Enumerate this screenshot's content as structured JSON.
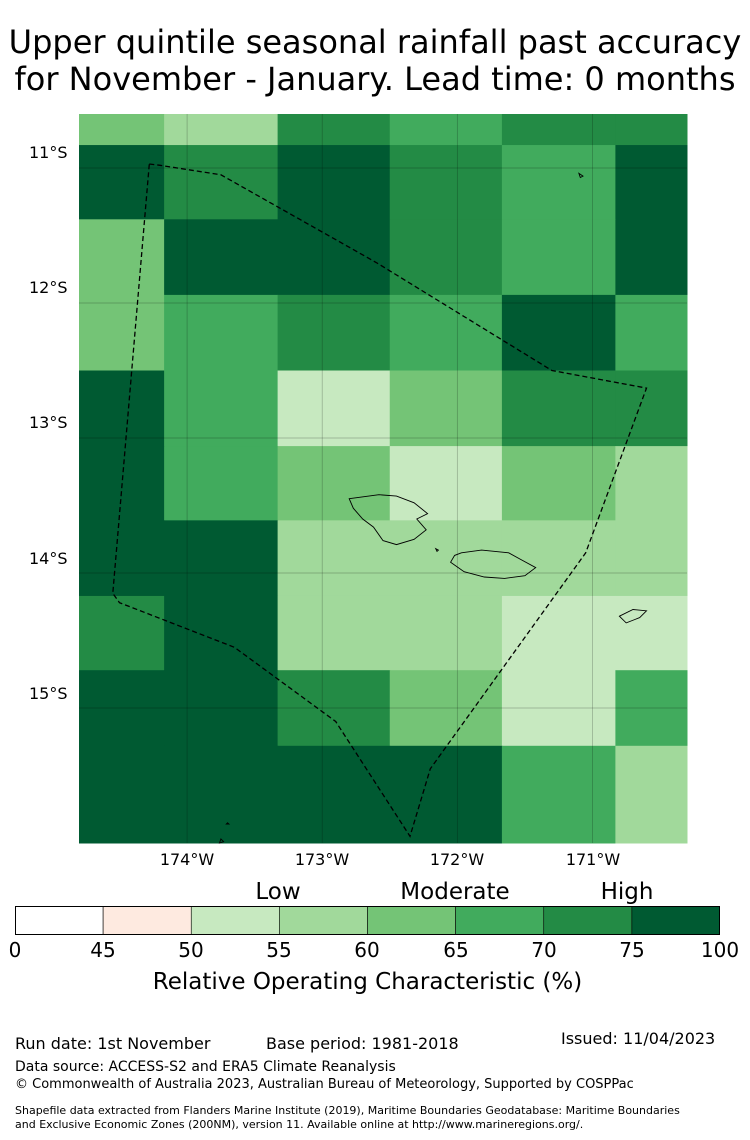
{
  "title": {
    "line1": "Upper quintile seasonal rainfall past accuracy",
    "line2": "for November - January. Lead time: 0 months"
  },
  "map": {
    "lon_range": [
      -174.8,
      -170.3
    ],
    "lat_range": [
      -16.0,
      -10.6
    ],
    "grid_lons": [
      -174.17,
      -173.33,
      -172.5,
      -171.67,
      -170.83
    ],
    "grid_lats": [
      -10.83,
      -11.38,
      -11.94,
      -12.5,
      -13.06,
      -13.61,
      -14.17,
      -14.72,
      -15.28
    ],
    "cells": [
      [
        60,
        55,
        70,
        65,
        70,
        70
      ],
      [
        75,
        70,
        75,
        70,
        65,
        75
      ],
      [
        60,
        75,
        75,
        70,
        65,
        75
      ],
      [
        60,
        65,
        70,
        65,
        75,
        65
      ],
      [
        75,
        65,
        50,
        60,
        70,
        70
      ],
      [
        100,
        65,
        60,
        50,
        60,
        55
      ],
      [
        100,
        75,
        55,
        55,
        55,
        55
      ],
      [
        70,
        100,
        55,
        55,
        50,
        50
      ],
      [
        100,
        75,
        70,
        60,
        50,
        65
      ],
      [
        100,
        100,
        100,
        100,
        65,
        55
      ]
    ],
    "lat_ticks": [
      {
        "label": "11°S",
        "value": -11
      },
      {
        "label": "12°S",
        "value": -12
      },
      {
        "label": "13°S",
        "value": -13
      },
      {
        "label": "14°S",
        "value": -14
      },
      {
        "label": "15°S",
        "value": -15
      }
    ],
    "lon_ticks": [
      {
        "label": "174°W",
        "value": -174
      },
      {
        "label": "173°W",
        "value": -173
      },
      {
        "label": "172°W",
        "value": -172
      },
      {
        "label": "171°W",
        "value": -171
      }
    ],
    "eez_boundary": [
      [
        -174.28,
        -10.97
      ],
      [
        -174.2,
        -10.98
      ],
      [
        -173.75,
        -11.05
      ],
      [
        -172.6,
        -11.7
      ],
      [
        -171.3,
        -12.5
      ],
      [
        -170.6,
        -12.63
      ],
      [
        -171.05,
        -13.85
      ],
      [
        -172.2,
        -15.45
      ],
      [
        -172.35,
        -15.95
      ],
      [
        -172.9,
        -15.1
      ],
      [
        -173.65,
        -14.55
      ],
      [
        -174.5,
        -14.22
      ],
      [
        -174.55,
        -14.15
      ],
      [
        -174.28,
        -10.97
      ]
    ],
    "islands": [
      [
        [
          -172.8,
          -13.45
        ],
        [
          -172.58,
          -13.42
        ],
        [
          -172.45,
          -13.43
        ],
        [
          -172.32,
          -13.48
        ],
        [
          -172.22,
          -13.56
        ],
        [
          -172.3,
          -13.6
        ],
        [
          -172.23,
          -13.68
        ],
        [
          -172.32,
          -13.75
        ],
        [
          -172.45,
          -13.79
        ],
        [
          -172.55,
          -13.76
        ],
        [
          -172.62,
          -13.66
        ],
        [
          -172.7,
          -13.6
        ],
        [
          -172.77,
          -13.52
        ]
      ],
      [
        [
          -171.97,
          -13.85
        ],
        [
          -171.82,
          -13.83
        ],
        [
          -171.62,
          -13.85
        ],
        [
          -171.53,
          -13.9
        ],
        [
          -171.42,
          -13.96
        ],
        [
          -171.5,
          -14.02
        ],
        [
          -171.65,
          -14.04
        ],
        [
          -171.8,
          -14.03
        ],
        [
          -171.95,
          -13.99
        ],
        [
          -172.05,
          -13.92
        ],
        [
          -172.02,
          -13.87
        ]
      ],
      [
        [
          -170.8,
          -14.32
        ],
        [
          -170.7,
          -14.27
        ],
        [
          -170.6,
          -14.28
        ],
        [
          -170.65,
          -14.33
        ],
        [
          -170.75,
          -14.37
        ]
      ],
      [
        [
          -171.1,
          -11.04
        ],
        [
          -171.07,
          -11.06
        ],
        [
          -171.09,
          -11.07
        ]
      ],
      [
        [
          -173.75,
          -15.97
        ],
        [
          -173.73,
          -15.99
        ],
        [
          -173.76,
          -16.0
        ]
      ],
      [
        [
          -173.7,
          -15.85
        ],
        [
          -173.69,
          -15.86
        ],
        [
          -173.71,
          -15.86
        ]
      ],
      [
        [
          -172.16,
          -13.82
        ],
        [
          -172.14,
          -13.83
        ],
        [
          -172.15,
          -13.84
        ]
      ]
    ]
  },
  "colorbar": {
    "bounds": [
      0,
      45,
      50,
      55,
      60,
      65,
      70,
      75,
      100
    ],
    "tick_labels": [
      "0",
      "45",
      "50",
      "55",
      "60",
      "65",
      "70",
      "75",
      "100"
    ],
    "colors": [
      "#ffffff",
      "#feeae0",
      "#c7e9c0",
      "#a1d99b",
      "#74c476",
      "#41ab5d",
      "#238b45",
      "#005a32"
    ],
    "category_labels": [
      "Low",
      "Moderate",
      "High"
    ],
    "label": "Relative Operating Characteristic (%)"
  },
  "footer": {
    "run_date": "Run date: 1st November",
    "base_period": "Base period: 1981-2018",
    "issued": "Issued: 11/04/2023",
    "data_source": "Data source: ACCESS-S2 and ERA5 Climate Reanalysis",
    "copyright": "© Commonwealth of Australia 2023, Australian Bureau of Meteorology, Supported by COSPPac",
    "shapefile_line1": "Shapefile data extracted from Flanders Marine Institute (2019), Maritime Boundaries Geodatabase: Maritime Boundaries",
    "shapefile_line2": "and Exclusive Economic Zones (200NM), version 11. Available online at http://www.marineregions.org/."
  }
}
